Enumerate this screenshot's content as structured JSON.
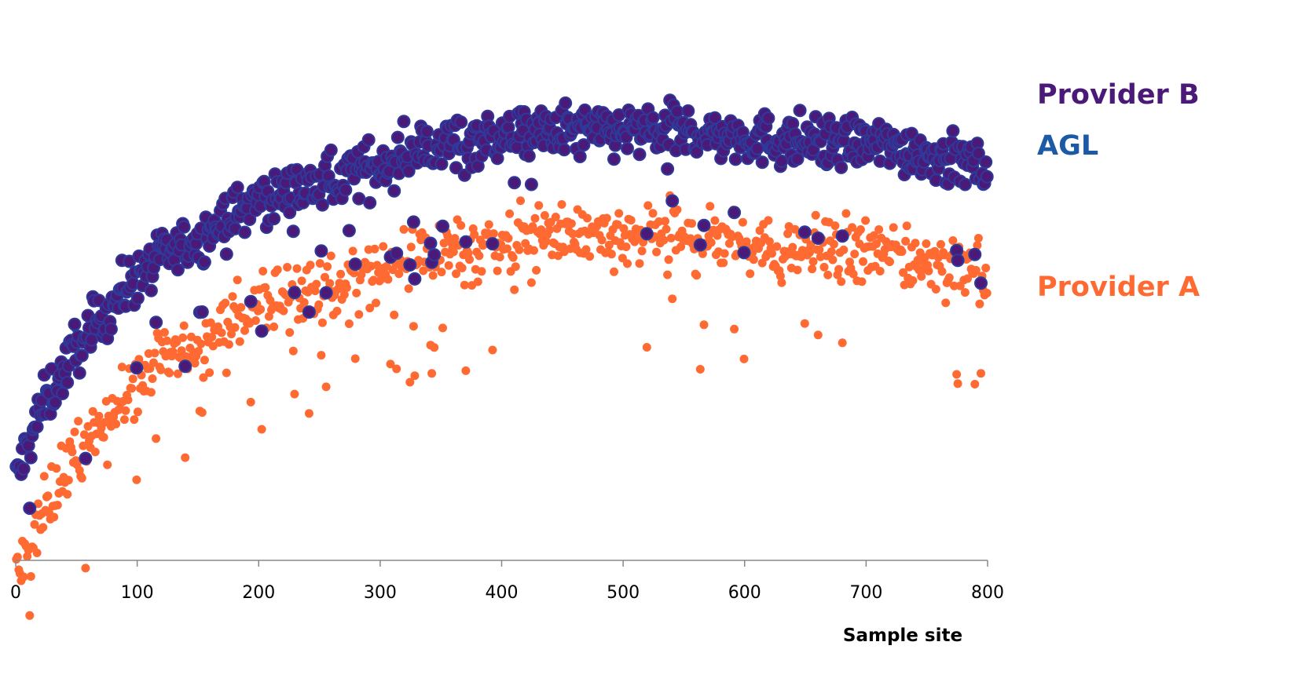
{
  "chart_data": {
    "type": "scatter",
    "title": "",
    "xlabel": "Sample site",
    "ylabel": "",
    "xlim": [
      0,
      800
    ],
    "ylim": [
      0,
      100
    ],
    "x_ticks": [
      {
        "value": 0,
        "label": "0"
      },
      {
        "value": 100,
        "label": "100"
      },
      {
        "value": 200,
        "label": "200"
      },
      {
        "value": 300,
        "label": "300"
      },
      {
        "value": 400,
        "label": "400"
      },
      {
        "value": 500,
        "label": "500"
      },
      {
        "value": 600,
        "label": "600"
      },
      {
        "value": 700,
        "label": "700"
      },
      {
        "value": 800,
        "label": "800"
      }
    ],
    "y_ticks": [],
    "grid": false,
    "legend": "right",
    "point_count_per_series": 800,
    "series": [
      {
        "name": "Provider A",
        "color": "#ff6a33",
        "trend": {
          "offset": -22,
          "scale": 1.0
        },
        "spread": 5.5
      },
      {
        "name": "AGL",
        "color": "#1c5aa6",
        "trend": {
          "offset": -2,
          "scale": 1.0
        },
        "spread": 4.5
      },
      {
        "name": "Provider B",
        "color": "#4b1a78",
        "edge_color": "#2d3a9a",
        "trend": {
          "offset": -2,
          "scale": 1.0
        },
        "spread": 4.5
      }
    ],
    "trend_curve": [
      [
        0,
        17
      ],
      [
        20,
        30
      ],
      [
        50,
        42
      ],
      [
        100,
        56
      ],
      [
        150,
        63
      ],
      [
        200,
        70
      ],
      [
        250,
        73
      ],
      [
        300,
        77
      ],
      [
        350,
        81
      ],
      [
        400,
        82
      ],
      [
        450,
        83
      ],
      [
        500,
        83
      ],
      [
        550,
        83
      ],
      [
        600,
        82
      ],
      [
        650,
        81
      ],
      [
        700,
        81
      ],
      [
        750,
        79
      ],
      [
        800,
        76
      ]
    ]
  }
}
